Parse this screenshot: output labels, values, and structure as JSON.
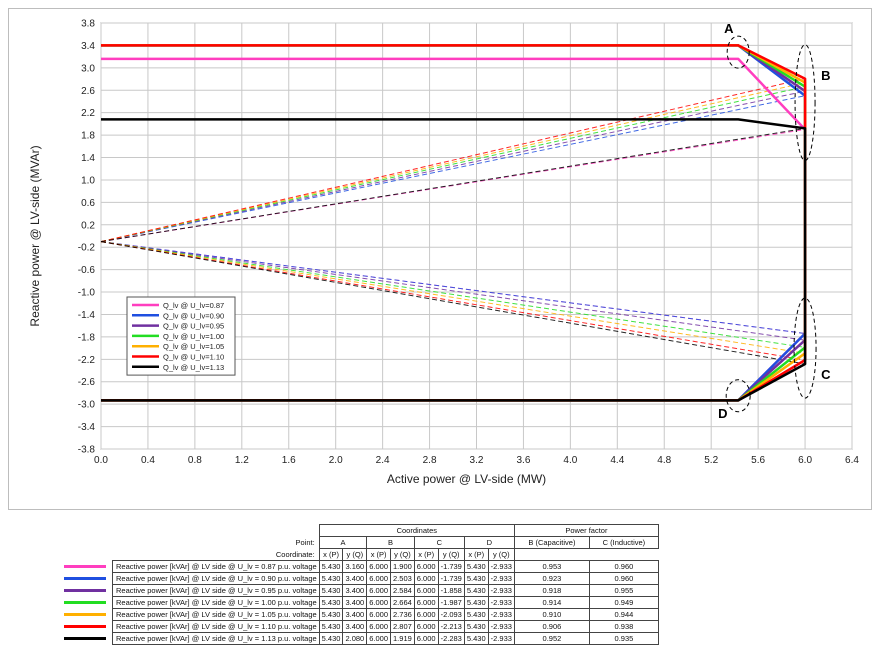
{
  "chart_data": {
    "type": "line",
    "xlabel": "Active power  @ LV-side (MW)",
    "ylabel": "Reactive power  @ LV-side (MVAr)",
    "xlim": [
      0,
      6.4
    ],
    "ylim": [
      -3.8,
      3.8
    ],
    "xticks": [
      "0.0",
      "0.4",
      "0.8",
      "1.2",
      "1.6",
      "2.0",
      "2.4",
      "2.8",
      "3.2",
      "3.6",
      "4.0",
      "4.4",
      "4.8",
      "5.2",
      "5.6",
      "6.0",
      "6.4"
    ],
    "yticks": [
      "3.8",
      "3.4",
      "3.0",
      "2.6",
      "2.2",
      "1.8",
      "1.4",
      "1.0",
      "0.6",
      "0.2",
      "-0.2",
      "-0.6",
      "-1.0",
      "-1.4",
      "-1.8",
      "-2.2",
      "-2.6",
      "-3.0",
      "-3.4",
      "-3.8"
    ],
    "grid": true,
    "legend_position": "bottom-left",
    "dashed_origin": [
      0,
      -0.1
    ],
    "point_labels": [
      "A",
      "B",
      "C",
      "D"
    ],
    "series": [
      {
        "name": "Q_lv @ U_lv=0.87",
        "color": "#ff3ebf",
        "A": [
          5.43,
          3.16
        ],
        "B": [
          6.0,
          1.9
        ],
        "C": [
          6.0,
          -1.739
        ],
        "D": [
          5.43,
          -2.933
        ]
      },
      {
        "name": "Q_lv @ U_lv=0.90",
        "color": "#1f4fe0",
        "A": [
          5.43,
          3.4
        ],
        "B": [
          6.0,
          2.503
        ],
        "C": [
          6.0,
          -1.739
        ],
        "D": [
          5.43,
          -2.933
        ]
      },
      {
        "name": "Q_lv @ U_lv=0.95",
        "color": "#7030a0",
        "A": [
          5.43,
          3.4
        ],
        "B": [
          6.0,
          2.584
        ],
        "C": [
          6.0,
          -1.858
        ],
        "D": [
          5.43,
          -2.933
        ]
      },
      {
        "name": "Q_lv @ U_lv=1.00",
        "color": "#22dd22",
        "A": [
          5.43,
          3.4
        ],
        "B": [
          6.0,
          2.664
        ],
        "C": [
          6.0,
          -1.987
        ],
        "D": [
          5.43,
          -2.933
        ]
      },
      {
        "name": "Q_lv @ U_lv=1.05",
        "color": "#ffb000",
        "A": [
          5.43,
          3.4
        ],
        "B": [
          6.0,
          2.736
        ],
        "C": [
          6.0,
          -2.093
        ],
        "D": [
          5.43,
          -2.933
        ]
      },
      {
        "name": "Q_lv @ U_lv=1.10",
        "color": "#ff0000",
        "A": [
          5.43,
          3.4
        ],
        "B": [
          6.0,
          2.807
        ],
        "C": [
          6.0,
          -2.213
        ],
        "D": [
          5.43,
          -2.933
        ]
      },
      {
        "name": "Q_lv @ U_lv=1.13",
        "color": "#000000",
        "A": [
          5.43,
          2.08
        ],
        "B": [
          6.0,
          1.919
        ],
        "C": [
          6.0,
          -2.283
        ],
        "D": [
          5.43,
          -2.933
        ]
      }
    ]
  },
  "table": {
    "header_point": "Point:",
    "header_coordinate": "Coordinate:",
    "group_coordinates": "Coordinates",
    "group_power_factor": "Power factor",
    "points": [
      "A",
      "B",
      "C",
      "D"
    ],
    "coord_x": "x (P)",
    "coord_y": "y (Q)",
    "pf_b": "B (Capacitive)",
    "pf_c": "C (Inductive)",
    "rows": [
      {
        "label": "Reactive power [kVAr] @ LV side @ U_lv = 0.87 p.u. voltage",
        "color": "#ff3ebf",
        "values": [
          "5.430",
          "3.160",
          "6.000",
          "1.900",
          "6.000",
          "-1.739",
          "5.430",
          "-2.933"
        ],
        "pf": [
          "0.953",
          "0.960"
        ]
      },
      {
        "label": "Reactive power [kVAr] @ LV side @ U_lv = 0.90 p.u. voltage",
        "color": "#1f4fe0",
        "values": [
          "5.430",
          "3.400",
          "6.000",
          "2.503",
          "6.000",
          "-1.739",
          "5.430",
          "-2.933"
        ],
        "pf": [
          "0.923",
          "0.960"
        ]
      },
      {
        "label": "Reactive power [kVAr] @ LV side @ U_lv = 0.95 p.u. voltage",
        "color": "#7030a0",
        "values": [
          "5.430",
          "3.400",
          "6.000",
          "2.584",
          "6.000",
          "-1.858",
          "5.430",
          "-2.933"
        ],
        "pf": [
          "0.918",
          "0.955"
        ]
      },
      {
        "label": "Reactive power [kVAr] @ LV side @ U_lv = 1.00 p.u. voltage",
        "color": "#22dd22",
        "values": [
          "5.430",
          "3.400",
          "6.000",
          "2.664",
          "6.000",
          "-1.987",
          "5.430",
          "-2.933"
        ],
        "pf": [
          "0.914",
          "0.949"
        ]
      },
      {
        "label": "Reactive power [kVAr] @ LV side @ U_lv = 1.05 p.u. voltage",
        "color": "#ffb000",
        "values": [
          "5.430",
          "3.400",
          "6.000",
          "2.736",
          "6.000",
          "-2.093",
          "5.430",
          "-2.933"
        ],
        "pf": [
          "0.910",
          "0.944"
        ]
      },
      {
        "label": "Reactive power [kVAr] @ LV side @ U_lv = 1.10 p.u. voltage",
        "color": "#ff0000",
        "values": [
          "5.430",
          "3.400",
          "6.000",
          "2.807",
          "6.000",
          "-2.213",
          "5.430",
          "-2.933"
        ],
        "pf": [
          "0.906",
          "0.938"
        ]
      },
      {
        "label": "Reactive power [kVAr] @ LV side @ U_lv = 1.13 p.u. voltage",
        "color": "#000000",
        "values": [
          "5.430",
          "2.080",
          "6.000",
          "1.919",
          "6.000",
          "-2.283",
          "5.430",
          "-2.933"
        ],
        "pf": [
          "0.952",
          "0.935"
        ]
      }
    ]
  }
}
